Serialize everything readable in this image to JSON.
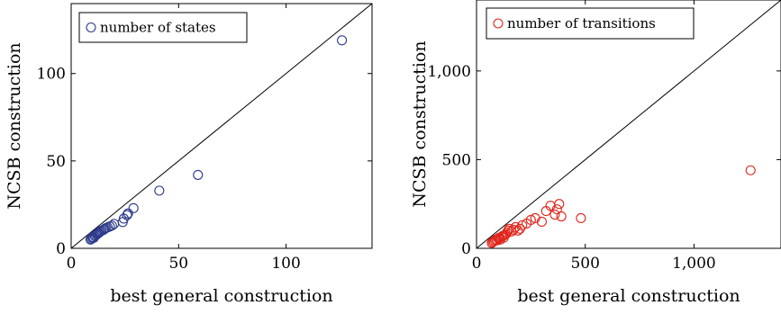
{
  "chart_data": [
    {
      "type": "scatter",
      "xlabel": "best general construction",
      "ylabel": "NCSB construction",
      "xlim": [
        0,
        140
      ],
      "ylim": [
        0,
        140
      ],
      "xticks": [
        0,
        50,
        100
      ],
      "yticks": [
        0,
        50,
        100
      ],
      "xtick_labels": [
        "0",
        "50",
        "100"
      ],
      "ytick_labels": [
        "0",
        "50",
        "100"
      ],
      "diagonal": true,
      "grid": false,
      "legend_position": "top-left",
      "series": [
        {
          "name": "number of states",
          "color": "#2c3a8c",
          "marker": "open-circle",
          "x": [
            9,
            9.5,
            10,
            10,
            10.5,
            11,
            11.5,
            12,
            12.5,
            13,
            13.5,
            14,
            15,
            15.5,
            16,
            17,
            18,
            19,
            20,
            24,
            24.5,
            26,
            26.5,
            29,
            41,
            59,
            126
          ],
          "y": [
            5,
            5.5,
            6,
            6.5,
            6,
            7,
            7.5,
            8,
            8.5,
            9,
            9.5,
            10,
            10.5,
            11,
            11.5,
            12,
            12.5,
            13,
            14,
            15,
            17,
            19,
            20,
            23,
            33,
            42,
            119
          ]
        }
      ]
    },
    {
      "type": "scatter",
      "xlabel": "best general construction",
      "ylabel": "NCSB construction",
      "xlim": [
        0,
        1400
      ],
      "ylim": [
        0,
        1400
      ],
      "xticks": [
        0,
        500,
        1000
      ],
      "yticks": [
        0,
        500,
        1000
      ],
      "xtick_labels": [
        "0",
        "500",
        "1,000"
      ],
      "ytick_labels": [
        "0",
        "500",
        "1,000"
      ],
      "diagonal": true,
      "grid": false,
      "legend_position": "top-left",
      "series": [
        {
          "name": "number of transitions",
          "color": "#e0261b",
          "marker": "open-circle",
          "x": [
            70,
            75,
            80,
            85,
            90,
            95,
            100,
            105,
            110,
            115,
            120,
            125,
            130,
            135,
            140,
            145,
            150,
            160,
            170,
            180,
            190,
            200,
            210,
            230,
            250,
            270,
            300,
            320,
            340,
            360,
            370,
            380,
            390,
            480,
            1260
          ],
          "y": [
            30,
            35,
            40,
            45,
            50,
            45,
            55,
            60,
            50,
            65,
            70,
            60,
            75,
            80,
            90,
            100,
            110,
            95,
            105,
            120,
            100,
            110,
            130,
            140,
            160,
            170,
            150,
            210,
            240,
            190,
            220,
            250,
            180,
            170,
            440
          ]
        }
      ]
    }
  ]
}
